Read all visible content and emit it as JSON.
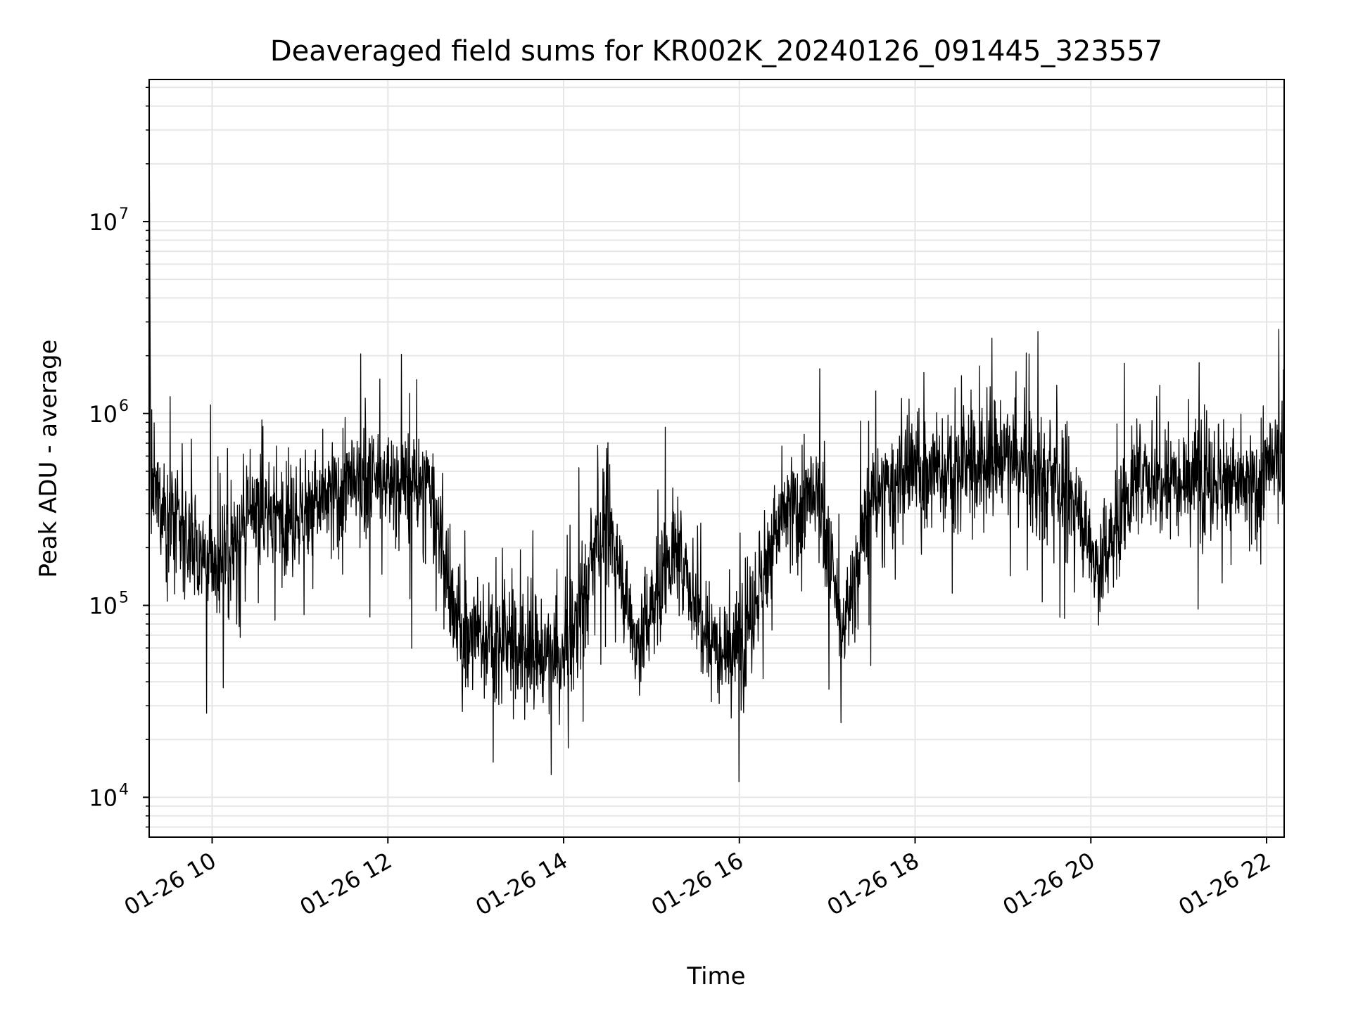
{
  "chart_data": {
    "type": "line",
    "title": "Deaveraged field sums for KR002K_20240126_091445_323557",
    "xlabel": "Time",
    "ylabel": "Peak ADU - average",
    "yscale": "log",
    "ylim": [
      6200,
      55000000
    ],
    "xlim": [
      "2024-01-26 09:17",
      "2024-01-26 22:12"
    ],
    "grid": true,
    "line_color": "#000000",
    "x_ticks": [
      "01-26 10",
      "01-26 12",
      "01-26 14",
      "01-26 16",
      "01-26 18",
      "01-26 20",
      "01-26 22"
    ],
    "y_ticks": [
      {
        "value": 10000,
        "base": "10",
        "exp": "4"
      },
      {
        "value": 100000,
        "base": "10",
        "exp": "5"
      },
      {
        "value": 1000000,
        "base": "10",
        "exp": "6"
      },
      {
        "value": 10000000,
        "base": "10",
        "exp": "7"
      }
    ],
    "series": [
      {
        "x": [
          "2024-01-26 09:17",
          "2024-01-26 09:18",
          "2024-01-26 09:30",
          "2024-01-26 10:00",
          "2024-01-26 10:30",
          "2024-01-26 11:00",
          "2024-01-26 11:30",
          "2024-01-26 12:00",
          "2024-01-26 12:30",
          "2024-01-26 12:45",
          "2024-01-26 13:00",
          "2024-01-26 13:30",
          "2024-01-26 14:00",
          "2024-01-26 14:30",
          "2024-01-26 14:50",
          "2024-01-26 15:15",
          "2024-01-26 15:40",
          "2024-01-26 16:00",
          "2024-01-26 16:30",
          "2024-01-26 16:55",
          "2024-01-26 17:10",
          "2024-01-26 17:30",
          "2024-01-26 18:00",
          "2024-01-26 18:30",
          "2024-01-26 19:00",
          "2024-01-26 19:30",
          "2024-01-26 19:50",
          "2024-01-26 20:05",
          "2024-01-26 20:30",
          "2024-01-26 21:00",
          "2024-01-26 21:30",
          "2024-01-26 21:50",
          "2024-01-26 22:12"
        ],
        "y": [
          35000000,
          400000,
          300000,
          150000,
          300000,
          300000,
          400000,
          450000,
          400000,
          80000,
          70000,
          60000,
          50000,
          300000,
          60000,
          200000,
          70000,
          60000,
          300000,
          350000,
          70000,
          350000,
          500000,
          500000,
          600000,
          450000,
          350000,
          150000,
          450000,
          500000,
          450000,
          400000,
          600000
        ]
      }
    ]
  }
}
